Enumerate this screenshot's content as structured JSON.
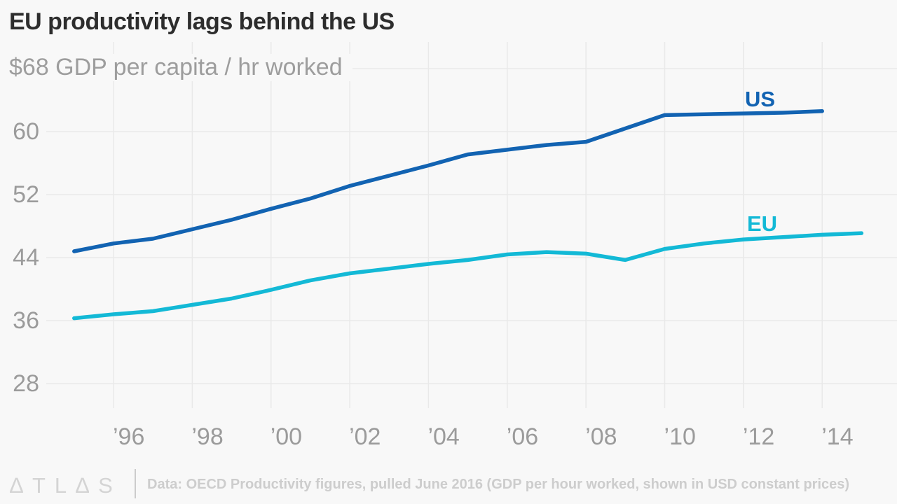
{
  "header": {
    "title": "EU productivity lags behind the US",
    "subtitle": "$68 GDP per capita / hr worked"
  },
  "chart_data": {
    "type": "line",
    "title": "EU productivity lags behind the US",
    "subtitle_unit_label": "$68 GDP per capita / hr worked",
    "xlabel": "",
    "ylabel": "GDP per capita / hr worked (USD)",
    "xlim": [
      1995,
      2015.5
    ],
    "ylim": [
      26,
      68
    ],
    "grid": true,
    "legend_position": "inline-end-of-line",
    "ygrid": [
      28,
      36,
      44,
      52,
      60,
      68
    ],
    "ytick_labels": [
      "28",
      "36",
      "44",
      "52",
      "60"
    ],
    "xticks": [
      {
        "year": 1996,
        "label": "’96"
      },
      {
        "year": 1998,
        "label": "’98"
      },
      {
        "year": 2000,
        "label": "’00"
      },
      {
        "year": 2002,
        "label": "’02"
      },
      {
        "year": 2004,
        "label": "’04"
      },
      {
        "year": 2006,
        "label": "’06"
      },
      {
        "year": 2008,
        "label": "’08"
      },
      {
        "year": 2010,
        "label": "’10"
      },
      {
        "year": 2012,
        "label": "’12"
      },
      {
        "year": 2014,
        "label": "’14"
      }
    ],
    "series": [
      {
        "name": "US",
        "color": "#1263b2",
        "start_year": 1995,
        "values": [
          44.8,
          45.8,
          46.4,
          47.6,
          48.8,
          50.2,
          51.5,
          53.1,
          54.4,
          55.7,
          57.1,
          57.7,
          58.3,
          58.7,
          60.4,
          62.1,
          62.2,
          62.3,
          62.4,
          62.6
        ]
      },
      {
        "name": "EU",
        "color": "#13b9d6",
        "start_year": 1995,
        "values": [
          36.3,
          36.8,
          37.2,
          38.0,
          38.8,
          39.9,
          41.1,
          42.0,
          42.6,
          43.2,
          43.7,
          44.4,
          44.7,
          44.5,
          43.7,
          45.1,
          45.8,
          46.3,
          46.6,
          46.9,
          47.1
        ]
      }
    ],
    "grid_color": "#e9e9e9",
    "background_color": "#f8f8f8"
  },
  "footer": {
    "logo": "∆TL∆S",
    "source": "Data: OECD Productivity figures, pulled June 2016 (GDP per hour worked, shown in USD constant prices)"
  }
}
